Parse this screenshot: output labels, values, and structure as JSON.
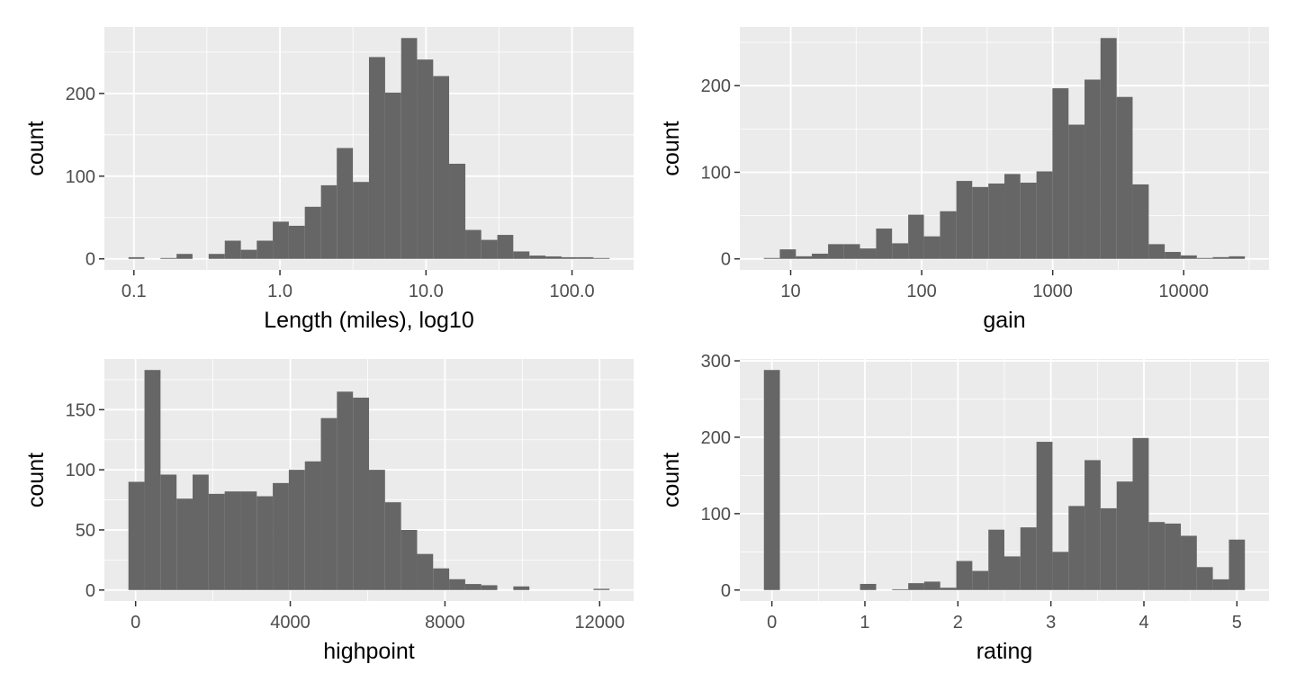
{
  "chart_data": [
    {
      "type": "histogram",
      "x_label": "Length (miles), log10",
      "y_label": "count",
      "color": "#666666",
      "xscale": "log",
      "grid": true,
      "bins": [
        0.0918,
        0.118,
        0.152,
        0.196,
        0.252,
        0.325,
        0.419,
        0.54,
        0.694,
        0.893,
        1.15,
        1.48,
        1.91,
        2.45,
        3.16,
        4.07,
        5.25,
        6.76,
        8.69,
        11.2,
        14.4,
        18.6,
        23.9,
        30.8,
        39.6,
        51.1,
        65.8,
        84.7,
        109,
        140,
        181
      ],
      "values": [
        2,
        0,
        1,
        6,
        0,
        6,
        22,
        11,
        22,
        45,
        40,
        63,
        89,
        134,
        93,
        244,
        201,
        267,
        241,
        221,
        115,
        35,
        23,
        29,
        9,
        4,
        3,
        2,
        2,
        1
      ],
      "xlim": [
        0.0628,
        264
      ],
      "xticks": [
        {
          "value": 0.1,
          "label": "0.1"
        },
        {
          "value": 1,
          "label": "1.0"
        },
        {
          "value": 10,
          "label": "10.0"
        },
        {
          "value": 100,
          "label": "100.0"
        }
      ],
      "xminor": [
        0.316,
        3.16,
        31.6
      ],
      "ylim": [
        -13.35,
        280.35
      ],
      "yticks": [
        0,
        100,
        200
      ],
      "yminor": [
        50,
        150,
        250
      ]
    },
    {
      "type": "histogram",
      "x_label": "gain",
      "y_label": "count",
      "color": "#666666",
      "xscale": "log",
      "grid": true,
      "bins": [
        6.24,
        8.26,
        10.96,
        14.5,
        19.3,
        25.5,
        33.8,
        44.9,
        59.4,
        78.9,
        104,
        138,
        184,
        243,
        323,
        428,
        566,
        752,
        995,
        1321,
        1750,
        2317,
        3076,
        4074,
        5408,
        7161,
        9484,
        12589,
        16672,
        22131,
        29309
      ],
      "values": [
        1,
        11,
        3,
        6,
        17,
        17,
        12,
        35,
        18,
        51,
        26,
        55,
        90,
        83,
        87,
        98,
        88,
        101,
        197,
        155,
        207,
        255,
        187,
        86,
        17,
        8,
        4,
        1,
        2,
        3
      ],
      "xlim": [
        4.09,
        44770
      ],
      "xticks": [
        10,
        100,
        1000,
        10000
      ],
      "xminor": [
        31.6,
        316,
        3162,
        31623
      ],
      "ylim": [
        -12.75,
        267.75
      ],
      "yticks": [
        0,
        100,
        200
      ],
      "yminor": [
        50,
        150,
        250
      ]
    },
    {
      "type": "histogram",
      "x_label": "highpoint",
      "y_label": "count",
      "color": "#666666",
      "xscale": "linear",
      "grid": true,
      "bins": [
        -185,
        230,
        644,
        1059,
        1474,
        1889,
        2303,
        2718,
        3133,
        3547,
        3962,
        4377,
        4791,
        5206,
        5621,
        6036,
        6450,
        6865,
        7280,
        7694,
        8109,
        8524,
        8938,
        9353,
        9768,
        10183,
        10597,
        11012,
        11427,
        11841,
        12256
      ],
      "values": [
        90,
        183,
        96,
        76,
        96,
        80,
        82,
        82,
        78,
        89,
        100,
        107,
        143,
        165,
        160,
        100,
        73,
        50,
        30,
        18,
        9,
        5,
        4,
        0,
        3,
        0,
        0,
        0,
        0,
        1
      ],
      "xlim": [
        -807,
        12878
      ],
      "xticks": [
        0,
        4000,
        8000,
        12000
      ],
      "xminor": [
        2000,
        6000,
        10000
      ],
      "ylim": [
        -9.15,
        192.15
      ],
      "yticks": [
        0,
        50,
        100,
        150
      ],
      "yminor": [
        25,
        75,
        125,
        175
      ]
    },
    {
      "type": "histogram",
      "x_label": "rating",
      "y_label": "count",
      "color": "#666666",
      "xscale": "linear",
      "grid": true,
      "bins": [
        -0.086,
        0.086,
        0.259,
        0.431,
        0.603,
        0.776,
        0.948,
        1.121,
        1.293,
        1.466,
        1.638,
        1.81,
        1.983,
        2.155,
        2.328,
        2.5,
        2.672,
        2.845,
        3.017,
        3.19,
        3.362,
        3.534,
        3.707,
        3.879,
        4.052,
        4.224,
        4.397,
        4.569,
        4.741,
        4.914,
        5.086
      ],
      "values": [
        288,
        0,
        0,
        0,
        0,
        0,
        8,
        0,
        1,
        9,
        11,
        3,
        38,
        25,
        79,
        44,
        82,
        194,
        50,
        110,
        170,
        107,
        142,
        199,
        89,
        87,
        71,
        30,
        14,
        66
      ],
      "xlim": [
        -0.345,
        5.345
      ],
      "xticks": [
        0,
        1,
        2,
        3,
        4,
        5
      ],
      "xminor": [
        0.5,
        1.5,
        2.5,
        3.5,
        4.5
      ],
      "ylim": [
        -14.4,
        302.4
      ],
      "yticks": [
        0,
        100,
        200,
        300
      ],
      "yminor": [
        50,
        150,
        250
      ]
    }
  ]
}
